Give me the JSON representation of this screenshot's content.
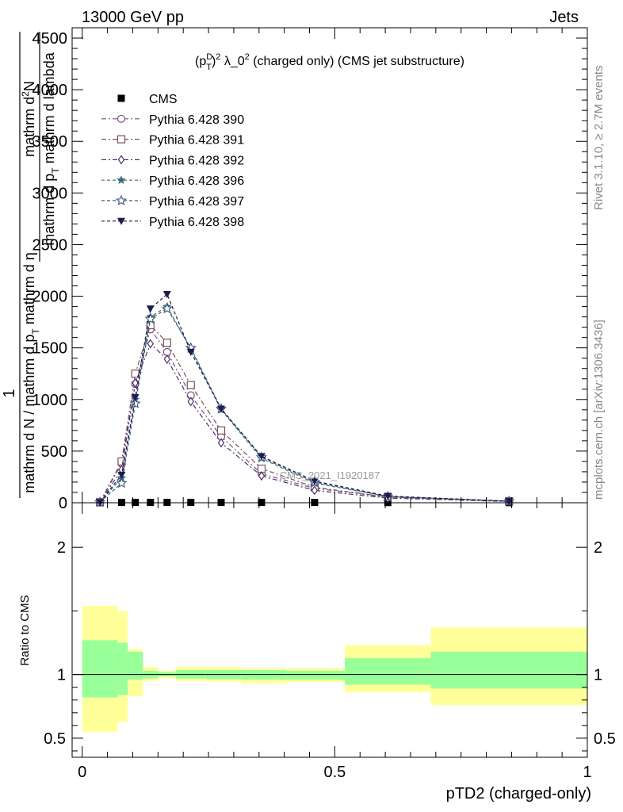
{
  "header": {
    "left": "13000 GeV pp",
    "right": "Jets"
  },
  "side_labels": {
    "rivet": "Rivet 3.1.10, ≥ 2.7M events",
    "mcplots": "mcplots.cern.ch [arXiv:1306.3436]"
  },
  "watermark": "CMS_2021_I1920187",
  "chart_data": [
    {
      "type": "line",
      "panel": "main",
      "title_parts": {
        "a": "(p",
        "sup1": "D",
        "sub1": "T",
        "b": ")",
        "sup2": "2",
        "c": " λ_0",
        "sup3": "2",
        "d": " (charged only) (CMS jet substructure)"
      },
      "ylabel_parts": {
        "one": "1",
        "den": "mathrm d N / mathrm d p",
        "den_sub": "T",
        "den2": " mathrm d η",
        "num": "mathrm d",
        "num_sup": "2",
        "num2": "N",
        "num3": "mathrm d p",
        "num3_sub": "T",
        "num4": " mathrm d lambda"
      },
      "ylim": [
        0,
        4600
      ],
      "xlim": [
        -0.02,
        1.0
      ],
      "yticks": [
        0,
        500,
        1000,
        1500,
        2000,
        2500,
        3000,
        3500,
        4000,
        4500
      ],
      "ytick_labels": [
        "0",
        "500",
        "1000",
        "1500",
        "2000",
        "2500",
        "3000",
        "3500",
        "4000",
        "4500"
      ],
      "x": [
        0.035,
        0.078,
        0.105,
        0.135,
        0.168,
        0.215,
        0.275,
        0.355,
        0.46,
        0.605,
        0.845
      ],
      "series": [
        {
          "name": "CMS",
          "color": "#000000",
          "marker": "filled-square",
          "dash": "",
          "values": [
            2,
            3,
            3,
            3,
            3,
            3,
            3,
            3,
            3,
            2,
            1
          ]
        },
        {
          "name": "Pythia 6.428 390",
          "color": "#7a4f7c",
          "marker": "open-circle",
          "dash": "6,3,2,3",
          "values": [
            5,
            380,
            1150,
            1680,
            1460,
            1040,
            640,
            280,
            140,
            55,
            15
          ]
        },
        {
          "name": "Pythia 6.428 391",
          "color": "#7a4f5a",
          "marker": "open-square",
          "dash": "6,3,2,3",
          "values": [
            5,
            400,
            1250,
            1720,
            1550,
            1140,
            700,
            330,
            150,
            55,
            15
          ]
        },
        {
          "name": "Pythia 6.428 392",
          "color": "#52306e",
          "marker": "open-diamond",
          "dash": "6,3,2,3",
          "values": [
            5,
            320,
            1160,
            1540,
            1390,
            980,
            580,
            260,
            120,
            45,
            12
          ]
        },
        {
          "name": "Pythia 6.428 396",
          "color": "#3a6c7a",
          "marker": "filled-star",
          "dash": "4,3",
          "values": [
            5,
            240,
            1000,
            1800,
            1900,
            1490,
            900,
            430,
            190,
            60,
            15
          ]
        },
        {
          "name": "Pythia 6.428 397",
          "color": "#3c5a78",
          "marker": "open-star",
          "dash": "4,3",
          "values": [
            5,
            190,
            960,
            1780,
            1880,
            1500,
            910,
            440,
            200,
            60,
            15
          ]
        },
        {
          "name": "Pythia 6.428 398",
          "color": "#1c1c52",
          "marker": "filled-triangle-down",
          "dash": "4,3",
          "values": [
            5,
            270,
            1020,
            1880,
            2020,
            1460,
            910,
            450,
            210,
            65,
            15
          ]
        }
      ]
    },
    {
      "type": "area",
      "panel": "ratio",
      "ylabel": "Ratio to CMS",
      "xlabel": "pTD2 (charged-only)",
      "ylim": [
        0.35,
        2.35
      ],
      "xlim": [
        -0.02,
        1.0
      ],
      "yticks": [
        0.5,
        1,
        2
      ],
      "ytick_labels": [
        "0.5",
        "1",
        "2"
      ],
      "xticks": [
        0,
        0.5,
        1
      ],
      "xtick_labels": [
        "0",
        "0.5",
        "1"
      ],
      "bins": [
        {
          "x0": 0.0,
          "x1": 0.07,
          "inner": [
            0.82,
            1.27
          ],
          "outer": [
            0.55,
            1.54
          ]
        },
        {
          "x0": 0.07,
          "x1": 0.09,
          "inner": [
            0.84,
            1.25
          ],
          "outer": [
            0.63,
            1.5
          ]
        },
        {
          "x0": 0.09,
          "x1": 0.12,
          "inner": [
            0.96,
            1.18
          ],
          "outer": [
            0.83,
            1.2
          ]
        },
        {
          "x0": 0.12,
          "x1": 0.15,
          "inner": [
            0.97,
            1.03
          ],
          "outer": [
            0.95,
            1.06
          ]
        },
        {
          "x0": 0.15,
          "x1": 0.185,
          "inner": [
            0.985,
            1.02
          ],
          "outer": [
            0.97,
            1.03
          ]
        },
        {
          "x0": 0.185,
          "x1": 0.245,
          "inner": [
            0.97,
            1.035
          ],
          "outer": [
            0.95,
            1.06
          ]
        },
        {
          "x0": 0.245,
          "x1": 0.315,
          "inner": [
            0.965,
            1.035
          ],
          "outer": [
            0.945,
            1.06
          ]
        },
        {
          "x0": 0.315,
          "x1": 0.405,
          "inner": [
            0.96,
            1.035
          ],
          "outer": [
            0.93,
            1.05
          ]
        },
        {
          "x0": 0.405,
          "x1": 0.52,
          "inner": [
            0.96,
            1.03
          ],
          "outer": [
            0.94,
            1.05
          ]
        },
        {
          "x0": 0.52,
          "x1": 0.69,
          "inner": [
            0.92,
            1.13
          ],
          "outer": [
            0.86,
            1.23
          ]
        },
        {
          "x0": 0.69,
          "x1": 1.0,
          "inner": [
            0.89,
            1.18
          ],
          "outer": [
            0.76,
            1.37
          ]
        }
      ],
      "band_colors": {
        "inner": "#99ff99",
        "outer": "#ffff99"
      }
    }
  ]
}
